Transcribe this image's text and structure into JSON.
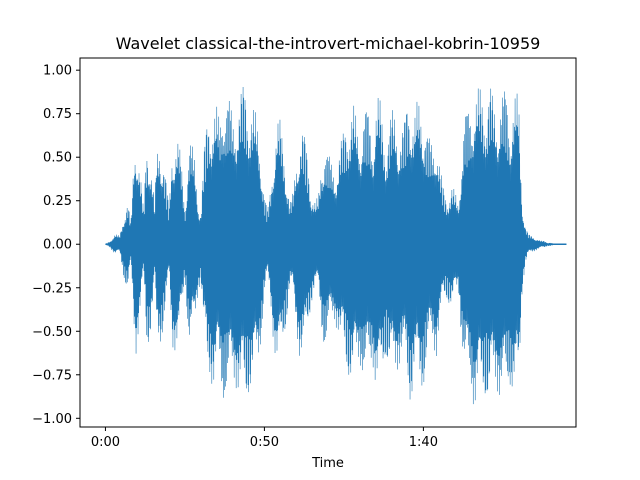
{
  "chart_data": {
    "type": "area",
    "title": "Wavelet classical-the-introvert-michael-kobrin-10959",
    "xlabel": "Time",
    "ylabel": "",
    "x_unit": "seconds",
    "xlim": [
      -8,
      148
    ],
    "ylim": [
      -1.05,
      1.07
    ],
    "x_ticks": [
      {
        "value": 0,
        "label": "0:00"
      },
      {
        "value": 50,
        "label": "0:50"
      },
      {
        "value": 100,
        "label": "1:40"
      }
    ],
    "y_ticks": [
      {
        "value": 1.0,
        "label": "1.00"
      },
      {
        "value": 0.75,
        "label": "0.75"
      },
      {
        "value": 0.5,
        "label": "0.50"
      },
      {
        "value": 0.25,
        "label": "0.25"
      },
      {
        "value": 0.0,
        "label": "0.00"
      },
      {
        "value": -0.25,
        "label": "−0.25"
      },
      {
        "value": -0.5,
        "label": "−0.50"
      },
      {
        "value": -0.75,
        "label": "−0.75"
      },
      {
        "value": -1.0,
        "label": "−1.00"
      }
    ],
    "grid": false,
    "color": "#1f77b4",
    "series": [
      {
        "x": [
          0,
          1.5,
          3,
          4.5,
          6,
          7,
          8,
          9,
          9.5,
          10,
          11,
          12,
          13,
          14,
          15,
          15.5,
          16,
          17,
          18,
          19,
          20,
          21,
          22,
          23,
          24,
          25,
          26,
          26.5,
          27,
          28,
          29,
          30,
          31,
          32,
          33,
          34,
          35,
          36,
          37,
          38,
          39,
          40,
          41,
          42,
          43,
          44,
          45,
          46,
          47,
          48,
          49,
          50,
          51,
          52,
          53,
          54,
          55,
          56,
          57,
          58,
          59,
          60,
          61,
          62,
          63,
          64,
          65,
          66,
          67,
          68,
          69,
          70,
          71,
          72,
          73,
          74,
          75,
          76,
          77,
          78,
          79,
          80,
          81,
          82,
          83,
          84,
          85,
          86,
          87,
          88,
          89,
          90,
          91,
          92,
          93,
          94,
          95,
          96,
          97,
          98,
          99,
          100,
          101,
          102,
          103,
          104,
          105,
          106,
          107,
          108,
          109,
          110,
          111,
          112,
          113,
          114,
          115,
          116,
          117,
          118,
          119,
          120,
          121,
          122,
          123,
          124,
          125,
          126,
          127,
          128,
          129,
          130,
          131,
          132,
          133,
          134,
          135,
          136,
          137,
          138,
          139,
          140,
          141,
          142,
          143,
          144,
          145
        ],
        "upper": [
          0.0,
          0.02,
          0.06,
          0.05,
          0.2,
          0.26,
          0.12,
          0.55,
          0.68,
          0.62,
          0.42,
          0.2,
          0.65,
          0.56,
          0.35,
          0.2,
          0.52,
          0.62,
          0.58,
          0.4,
          0.2,
          0.6,
          0.65,
          0.62,
          0.45,
          0.22,
          0.55,
          0.64,
          0.6,
          0.5,
          0.3,
          0.2,
          0.55,
          0.74,
          0.8,
          0.82,
          0.8,
          0.72,
          0.95,
          0.92,
          0.85,
          0.75,
          0.82,
          0.85,
          0.93,
          0.95,
          0.88,
          0.82,
          0.78,
          0.7,
          0.55,
          0.3,
          0.2,
          0.35,
          0.6,
          0.74,
          0.72,
          0.6,
          0.45,
          0.25,
          0.3,
          0.5,
          0.68,
          0.7,
          0.6,
          0.45,
          0.32,
          0.25,
          0.28,
          0.5,
          0.65,
          0.55,
          0.48,
          0.45,
          0.5,
          0.6,
          0.68,
          0.78,
          0.8,
          0.82,
          0.72,
          0.66,
          0.8,
          0.82,
          0.75,
          0.65,
          0.85,
          0.88,
          0.76,
          0.65,
          0.7,
          0.78,
          0.78,
          0.72,
          0.68,
          0.72,
          0.88,
          0.92,
          0.75,
          0.82,
          0.85,
          0.82,
          0.7,
          0.62,
          0.6,
          0.7,
          0.5,
          0.35,
          0.3,
          0.32,
          0.35,
          0.3,
          0.25,
          0.55,
          0.78,
          0.8,
          0.82,
          0.95,
          0.92,
          0.9,
          0.88,
          0.93,
          0.95,
          0.85,
          0.82,
          0.88,
          0.9,
          0.92,
          0.8,
          0.85,
          0.88,
          0.85,
          0.3,
          0.12,
          0.06,
          0.05,
          0.04,
          0.03,
          0.02,
          0.02,
          0.01,
          0.01,
          0.0,
          0.0,
          0.0,
          0.0,
          0.0
        ],
        "lower": [
          0.0,
          -0.02,
          -0.06,
          -0.05,
          -0.22,
          -0.28,
          -0.12,
          -0.5,
          -0.65,
          -0.58,
          -0.4,
          -0.18,
          -0.62,
          -0.55,
          -0.35,
          -0.18,
          -0.55,
          -0.6,
          -0.52,
          -0.38,
          -0.18,
          -0.6,
          -0.62,
          -0.6,
          -0.42,
          -0.2,
          -0.52,
          -0.62,
          -0.58,
          -0.5,
          -0.3,
          -0.2,
          -0.55,
          -0.76,
          -0.78,
          -0.85,
          -0.8,
          -0.78,
          -0.92,
          -0.9,
          -0.88,
          -0.82,
          -0.82,
          -0.88,
          -0.92,
          -0.96,
          -0.88,
          -0.84,
          -0.8,
          -0.72,
          -0.55,
          -0.3,
          -0.2,
          -0.38,
          -0.6,
          -0.72,
          -0.7,
          -0.58,
          -0.45,
          -0.25,
          -0.3,
          -0.5,
          -0.65,
          -0.68,
          -0.6,
          -0.45,
          -0.32,
          -0.25,
          -0.28,
          -0.5,
          -0.62,
          -0.55,
          -0.48,
          -0.45,
          -0.5,
          -0.62,
          -0.66,
          -0.75,
          -0.8,
          -0.84,
          -0.74,
          -0.68,
          -0.78,
          -0.84,
          -0.76,
          -0.68,
          -0.84,
          -0.9,
          -0.8,
          -0.66,
          -0.72,
          -0.8,
          -0.78,
          -0.72,
          -0.68,
          -0.72,
          -0.86,
          -0.94,
          -0.78,
          -0.8,
          -0.86,
          -0.84,
          -0.72,
          -0.64,
          -0.6,
          -0.66,
          -0.5,
          -0.38,
          -0.32,
          -0.35,
          -0.38,
          -0.32,
          -0.26,
          -0.55,
          -0.78,
          -0.82,
          -0.85,
          -0.96,
          -0.94,
          -0.92,
          -0.88,
          -0.92,
          -0.96,
          -0.86,
          -0.82,
          -0.9,
          -0.92,
          -0.94,
          -0.82,
          -0.86,
          -0.9,
          -0.88,
          -0.3,
          -0.12,
          -0.06,
          -0.05,
          -0.04,
          -0.03,
          -0.02,
          -0.02,
          -0.01,
          -0.01,
          0.0,
          0.0,
          0.0,
          0.0,
          0.0
        ]
      }
    ]
  }
}
